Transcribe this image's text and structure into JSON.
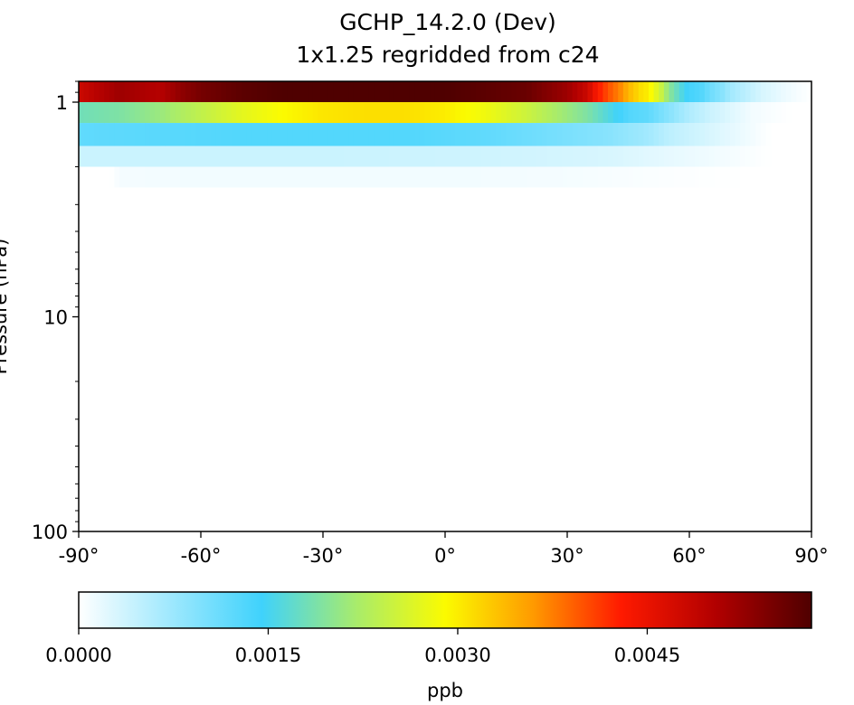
{
  "chart_data": {
    "type": "heatmap",
    "title": "GCHP_14.2.0 (Dev)",
    "subtitle": "1x1.25 regridded from c24",
    "ylabel": "Pressure (hPa)",
    "x_ticks": [
      {
        "value": -90,
        "label": "-90°"
      },
      {
        "value": -60,
        "label": "-60°"
      },
      {
        "value": -30,
        "label": "-30°"
      },
      {
        "value": 0,
        "label": "0°"
      },
      {
        "value": 30,
        "label": "30°"
      },
      {
        "value": 60,
        "label": "60°"
      },
      {
        "value": 90,
        "label": "90°"
      }
    ],
    "xlim": [
      -90,
      90
    ],
    "y_scale": "log",
    "y_inverted": true,
    "ylim": [
      100,
      0.8
    ],
    "y_ticks": [
      {
        "value": 1,
        "label": "1"
      },
      {
        "value": 10,
        "label": "10"
      },
      {
        "value": 100,
        "label": "100"
      }
    ],
    "rows": [
      {
        "p_top": 0.8,
        "p_bot": 1.0,
        "lat": [
          -90,
          -85,
          -80,
          -70,
          -65,
          -60,
          -50,
          -40,
          -30,
          -20,
          -10,
          0,
          10,
          20,
          30,
          35,
          37,
          40,
          43,
          45,
          48,
          50,
          53,
          55,
          58,
          60,
          63,
          65,
          68,
          70,
          75,
          78,
          85,
          90
        ],
        "val": [
          0.0048,
          0.005,
          0.0052,
          0.005,
          0.0053,
          0.0055,
          0.0057,
          0.0058,
          0.00595,
          0.0061,
          0.006,
          0.0058,
          0.0057,
          0.0056,
          0.0052,
          0.0048,
          0.0044,
          0.004,
          0.0037,
          0.0034,
          0.0031,
          0.003,
          0.0025,
          0.002,
          0.0016,
          0.0014,
          0.0013,
          0.0011,
          0.0009,
          0.0007,
          0.00045,
          0.0003,
          0.0001,
          0.0
        ]
      },
      {
        "p_top": 1.0,
        "p_bot": 1.25,
        "lat": [
          -90,
          -80,
          -70,
          -60,
          -50,
          -40,
          -30,
          -20,
          -10,
          0,
          10,
          20,
          30,
          35,
          40,
          45,
          50,
          55,
          60,
          65,
          70,
          75,
          80,
          85,
          90
        ],
        "val": [
          0.0018,
          0.0019,
          0.0021,
          0.0024,
          0.0027,
          0.0029,
          0.00305,
          0.0031,
          0.0031,
          0.003,
          0.0028,
          0.0025,
          0.0021,
          0.0019,
          0.0016,
          0.0013,
          0.0012,
          0.0009,
          0.0006,
          0.0004,
          0.00025,
          0.0001,
          5e-05,
          0.0,
          0.0
        ]
      },
      {
        "p_top": 1.25,
        "p_bot": 1.6,
        "lat": [
          -90,
          -70,
          -50,
          -30,
          -10,
          0,
          10,
          20,
          30,
          40,
          45,
          50,
          55,
          60,
          65,
          70,
          75,
          80,
          85,
          90
        ],
        "val": [
          0.0012,
          0.00125,
          0.0013,
          0.0013,
          0.0013,
          0.00125,
          0.0012,
          0.0011,
          0.001,
          0.0009,
          0.0008,
          0.0007,
          0.0005,
          0.0004,
          0.0003,
          0.0002,
          0.0001,
          0.0,
          0.0,
          0.0
        ]
      },
      {
        "p_top": 1.6,
        "p_bot": 2.0,
        "lat": [
          -90,
          -60,
          -30,
          0,
          20,
          40,
          60,
          70,
          80,
          90
        ],
        "val": [
          0.0004,
          0.0004,
          0.0004,
          0.00038,
          0.00035,
          0.0003,
          0.00015,
          8e-05,
          0.0,
          0.0
        ]
      },
      {
        "p_top": 2.0,
        "p_bot": 2.5,
        "lat": [
          -90,
          -82,
          -80,
          -60,
          -30,
          0,
          30,
          45,
          60,
          75,
          90
        ],
        "val": [
          0.0,
          0.0,
          8e-05,
          0.0001,
          0.0001,
          0.0001,
          8e-05,
          5e-05,
          2e-05,
          0.0,
          0.0
        ]
      }
    ],
    "colorbar": {
      "label": "ppb",
      "min": 0.0,
      "max": 0.0058,
      "ticks": [
        {
          "value": 0.0,
          "label": "0.0000"
        },
        {
          "value": 0.0015,
          "label": "0.0015"
        },
        {
          "value": 0.003,
          "label": "0.0030"
        },
        {
          "value": 0.0045,
          "label": "0.0045"
        }
      ],
      "colormap": [
        {
          "pos": 0.0,
          "color": "#ffffff"
        },
        {
          "pos": 0.25,
          "color": "#3fd2fc"
        },
        {
          "pos": 0.38,
          "color": "#a9ec6a"
        },
        {
          "pos": 0.5,
          "color": "#fbfb00"
        },
        {
          "pos": 0.62,
          "color": "#ff9a00"
        },
        {
          "pos": 0.74,
          "color": "#ff1a00"
        },
        {
          "pos": 0.87,
          "color": "#b10000"
        },
        {
          "pos": 1.0,
          "color": "#4f0000"
        }
      ]
    }
  }
}
